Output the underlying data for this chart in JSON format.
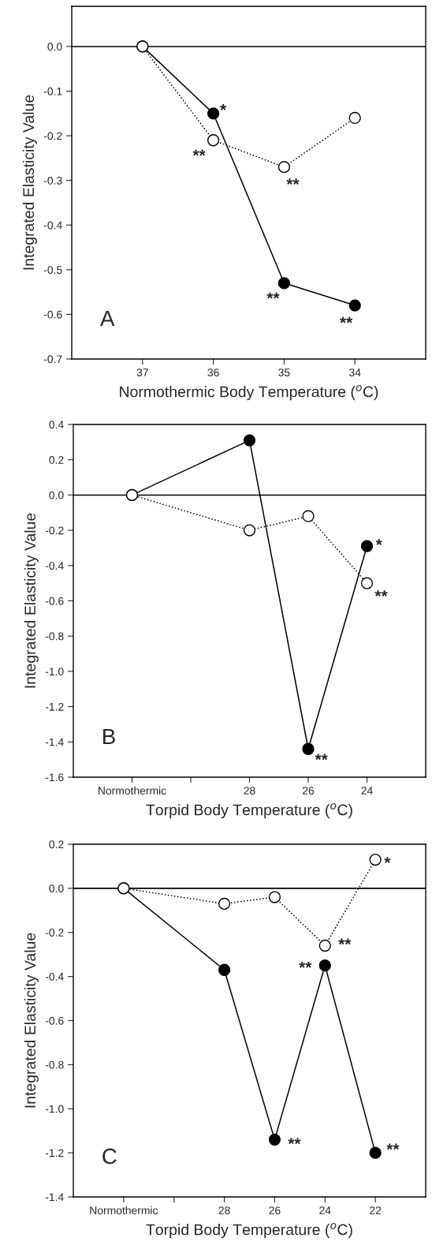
{
  "chart_data": [
    {
      "type": "line",
      "xlabel": "Normothermic Body Temperature ($^{o}$C)",
      "ylabel": "Integrated Elasticity Value",
      "x": [
        37,
        36,
        35,
        34
      ],
      "xlim": [
        38,
        33
      ],
      "xticks": [
        37,
        36,
        35,
        34
      ],
      "ylim": [
        -0.7,
        0.09
      ],
      "yticks": [
        {
          "value": -0.7,
          "label": "-0.7"
        },
        {
          "value": -0.6,
          "label": "-0.6"
        },
        {
          "value": -0.5,
          "label": "-0.5"
        },
        {
          "value": -0.4,
          "label": "-0.4"
        },
        {
          "value": -0.3,
          "label": "-0.3"
        },
        {
          "value": -0.2,
          "label": "-0.2"
        },
        {
          "value": -0.1,
          "label": "-0.1"
        },
        {
          "value": 0.0,
          "label": "0.0"
        }
      ],
      "marker": "circle",
      "grid": false,
      "legend": false,
      "ref_lines": [
        {
          "axis": "y",
          "value": 0,
          "color": "#000000",
          "line_style": "solid"
        }
      ],
      "series": [
        {
          "color": "#000000",
          "line_style": "solid",
          "values": [
            0,
            -0.15,
            -0.53,
            -0.58
          ]
        },
        {
          "color": "#ffffff",
          "line_style": "dotted",
          "values": [
            0,
            -0.21,
            -0.27,
            -0.16
          ]
        }
      ],
      "annotations": [
        {
          "text": "*",
          "x": 36,
          "y": -0.15
        },
        {
          "text": "**",
          "x": 36,
          "y": -0.21
        },
        {
          "text": "**",
          "x": 35,
          "y": -0.27
        },
        {
          "text": "**",
          "x": 35,
          "y": -0.53
        },
        {
          "text": "**",
          "x": 34,
          "y": -0.58
        },
        "A"
      ]
    },
    {
      "type": "line",
      "xlabel": "Torpid Body Temperature ($^{o}$C)",
      "ylabel": "Integrated Elasticity Value",
      "categories": [
        "Normothermic",
        null,
        "28",
        "26",
        "24"
      ],
      "ylim": [
        -1.6,
        0.4
      ],
      "yticks": [
        {
          "value": -1.6,
          "label": "-1.6"
        },
        {
          "value": -1.4,
          "label": "-1.4"
        },
        {
          "value": -1.2,
          "label": "-1.2"
        },
        {
          "value": -1.0,
          "label": "-1.0"
        },
        {
          "value": -0.8,
          "label": "-0.8"
        },
        {
          "value": -0.6,
          "label": "-0.6"
        },
        {
          "value": -0.4,
          "label": "-0.4"
        },
        {
          "value": -0.2,
          "label": "-0.2"
        },
        {
          "value": 0.0,
          "label": "0.0"
        },
        {
          "value": 0.2,
          "label": "0.2"
        },
        {
          "value": 0.4,
          "label": "0.4"
        }
      ],
      "marker": "circle",
      "grid": false,
      "legend": false,
      "ref_lines": [
        {
          "axis": "y",
          "value": 0,
          "color": "#000000",
          "line_style": "solid"
        }
      ],
      "series": [
        {
          "color": "#000000",
          "line_style": "solid",
          "values": [
            0,
            null,
            0.31,
            -1.44,
            -0.29
          ]
        },
        {
          "color": "#ffffff",
          "line_style": "dotted",
          "values": [
            0,
            null,
            -0.2,
            -0.12,
            -0.5
          ]
        }
      ],
      "annotations": [
        {
          "text": "*",
          "x": "24",
          "y": -0.29
        },
        {
          "text": "**",
          "x": "24",
          "y": -0.5
        },
        {
          "text": "**",
          "x": "26",
          "y": -1.44
        },
        "B"
      ]
    },
    {
      "type": "line",
      "xlabel": "Torpid Body Temperature ($^{o}$C)",
      "ylabel": "Integrated Elasticity Value",
      "categories": [
        "Normothermic",
        null,
        "28",
        "26",
        "24",
        "22"
      ],
      "ylim": [
        -1.4,
        0.2
      ],
      "yticks": [
        {
          "value": -1.4,
          "label": "-1.4"
        },
        {
          "value": -1.2,
          "label": "-1.2"
        },
        {
          "value": -1.0,
          "label": "-1.0"
        },
        {
          "value": -0.8,
          "label": "-0.8"
        },
        {
          "value": -0.6,
          "label": "-0.6"
        },
        {
          "value": -0.4,
          "label": "-0.4"
        },
        {
          "value": -0.2,
          "label": "-0.2"
        },
        {
          "value": 0.0,
          "label": "0.0"
        },
        {
          "value": 0.2,
          "label": "0.2"
        }
      ],
      "marker": "circle",
      "grid": false,
      "legend": false,
      "ref_lines": [
        {
          "axis": "y",
          "value": 0,
          "color": "#000000",
          "line_style": "solid"
        }
      ],
      "series": [
        {
          "color": "#000000",
          "line_style": "solid",
          "values": [
            0,
            null,
            -0.37,
            -1.14,
            -0.35,
            -1.2
          ]
        },
        {
          "color": "#ffffff",
          "line_style": "dotted",
          "values": [
            0,
            null,
            -0.07,
            -0.04,
            -0.26,
            0.13
          ]
        }
      ],
      "annotations": [
        {
          "text": "*",
          "x": "22",
          "y": 0.13
        },
        {
          "text": "**",
          "x": "24",
          "y": -0.26
        },
        {
          "text": "**",
          "x": "24",
          "y": -0.35
        },
        {
          "text": "**",
          "x": "26",
          "y": -1.14
        },
        {
          "text": "**",
          "x": "22",
          "y": -1.2
        },
        "C"
      ]
    }
  ]
}
